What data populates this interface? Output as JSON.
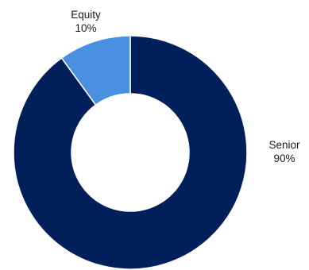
{
  "chart_data": {
    "type": "pie",
    "donut": true,
    "title": "",
    "slices": [
      {
        "label": "Senior",
        "value": 90,
        "display": "90%",
        "color": "#001f5b"
      },
      {
        "label": "Equity",
        "value": 10,
        "display": "10%",
        "color": "#4a90e2"
      }
    ],
    "legend": "none",
    "label_position": "outside",
    "start": "12 o'clock, counterclockwise for Equity"
  }
}
